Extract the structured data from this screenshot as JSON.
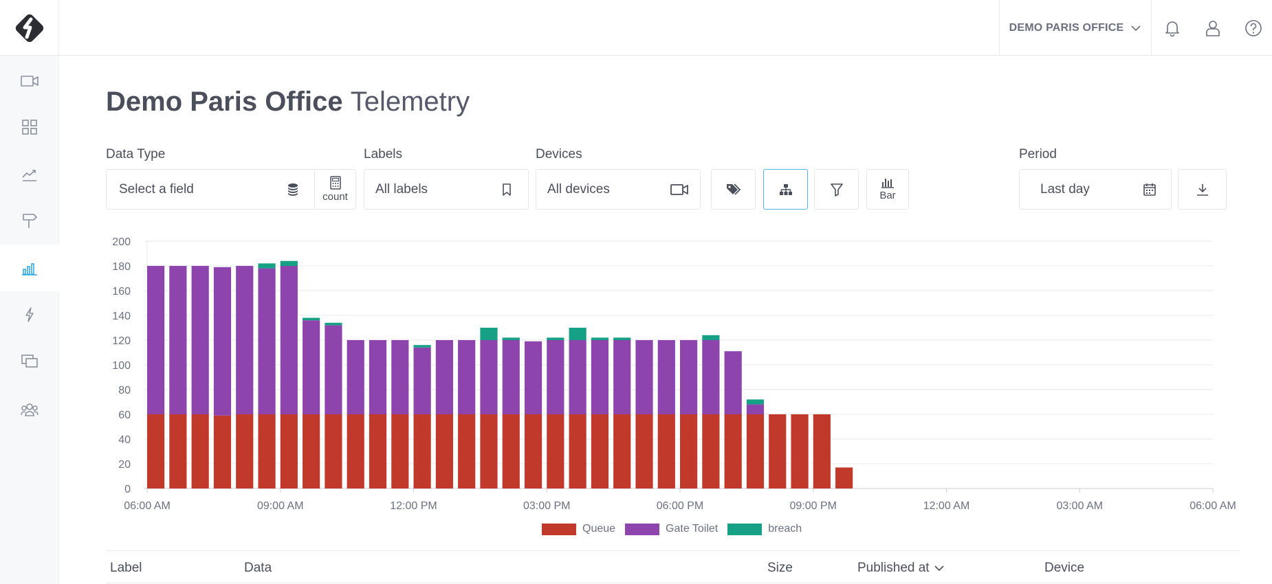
{
  "header": {
    "org_name": "DEMO PARIS OFFICE"
  },
  "sidebar": {
    "items": [
      {
        "name": "cameras",
        "icon": "video-camera-icon"
      },
      {
        "name": "dashboard",
        "icon": "grid-icon"
      },
      {
        "name": "analytics",
        "icon": "trend-line-icon"
      },
      {
        "name": "signs",
        "icon": "signpost-icon"
      },
      {
        "name": "telemetry",
        "icon": "bar-chart-icon",
        "active": true
      },
      {
        "name": "alerts",
        "icon": "lightning-icon"
      },
      {
        "name": "screens",
        "icon": "screens-icon"
      },
      {
        "name": "users",
        "icon": "users-icon"
      }
    ]
  },
  "title": {
    "strong": "Demo Paris Office",
    "light": "Telemetry"
  },
  "filters": {
    "data_type_label": "Data Type",
    "data_type_placeholder": "Select a field",
    "aggregation": "count",
    "labels_label": "Labels",
    "labels_value": "All labels",
    "devices_label": "Devices",
    "devices_value": "All devices",
    "chart_type": "Bar",
    "period_label": "Period",
    "period_value": "Last day"
  },
  "colors": {
    "queue": "#c0392b",
    "gate_toilet": "#8e44ad",
    "breach": "#16a085",
    "accent": "#4bb8e6"
  },
  "chart_data": {
    "type": "bar",
    "stacked": true,
    "x_ticks": [
      "06:00 AM",
      "09:00 AM",
      "12:00 PM",
      "03:00 PM",
      "06:00 PM",
      "09:00 PM",
      "12:00 AM",
      "03:00 AM",
      "06:00 AM"
    ],
    "ylim": [
      0,
      200
    ],
    "y_ticks": [
      0,
      20,
      40,
      60,
      80,
      100,
      120,
      140,
      160,
      180,
      200
    ],
    "grid": true,
    "legend_position": "bottom",
    "series": [
      {
        "name": "Queue",
        "values": [
          60,
          60,
          60,
          59,
          60,
          60,
          60,
          60,
          60,
          60,
          60,
          60,
          60,
          60,
          60,
          60,
          60,
          60,
          60,
          60,
          60,
          60,
          60,
          60,
          60,
          60,
          60,
          60,
          60,
          60,
          60,
          17
        ]
      },
      {
        "name": "Gate Toilet",
        "values": [
          120,
          120,
          120,
          120,
          120,
          118,
          120,
          76,
          72,
          60,
          60,
          60,
          54,
          60,
          60,
          60,
          60,
          59,
          60,
          60,
          60,
          60,
          60,
          60,
          60,
          60,
          51,
          8,
          0,
          0,
          0,
          0
        ]
      },
      {
        "name": "breach",
        "values": [
          0,
          0,
          0,
          0,
          0,
          4,
          4,
          2,
          2,
          0,
          0,
          0,
          2,
          0,
          0,
          10,
          2,
          0,
          2,
          10,
          2,
          2,
          0,
          0,
          0,
          4,
          0,
          4,
          0,
          0,
          0,
          0
        ]
      }
    ]
  },
  "table": {
    "columns": [
      "Label",
      "Data",
      "Size",
      "Published at",
      "Device"
    ]
  }
}
